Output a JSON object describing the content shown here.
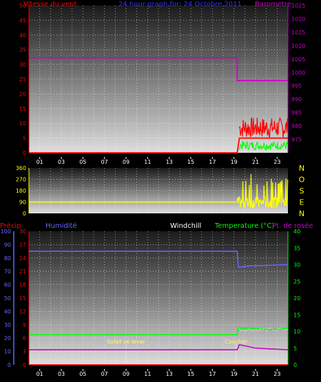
{
  "chart_data": [
    {
      "type": "line",
      "panel": "wind-baro",
      "title": "24 hour graph for: 24 Octobre 2011",
      "left_axis_label": "Vitesse du vent",
      "right_axis_label": "Barometre",
      "left_ylim": [
        0,
        50
      ],
      "right_ylim": [
        970,
        1025
      ],
      "left_ticks": [
        "0",
        "5",
        "10",
        "15",
        "20",
        "25",
        "30",
        "35",
        "40",
        "45",
        "50"
      ],
      "right_ticks": [
        "975",
        "980",
        "985",
        "990",
        "995",
        "1000",
        "1005",
        "1010",
        "1015",
        "1020",
        "1025"
      ],
      "x_ticks": [
        "01",
        "03",
        "05",
        "07",
        "09",
        "11",
        "13",
        "15",
        "17",
        "19",
        "21",
        "23"
      ],
      "grid": true,
      "series": [
        {
          "name": "Barometre",
          "axis": "right",
          "color": "#cc00cc",
          "x": [
            0,
            19.3,
            19.3,
            24
          ],
          "y": [
            1005.5,
            1005.5,
            997,
            997
          ]
        },
        {
          "name": "Vitesse du vent",
          "axis": "left",
          "color": "#ff0000",
          "x": [
            0,
            19.3,
            19.5,
            24
          ],
          "y": [
            0,
            0,
            5,
            5
          ]
        }
      ],
      "gust_band": {
        "color": "#ff0000",
        "x0": 19.5,
        "x1": 24,
        "ymin": 5,
        "ymax": 12
      },
      "avg_band": {
        "color": "#00ff00",
        "x0": 19.5,
        "x1": 24,
        "ymin": 1,
        "ymax": 4
      }
    },
    {
      "type": "line",
      "panel": "wind-direction",
      "ylim": [
        0,
        360
      ],
      "left_ticks": [
        "0",
        "90",
        "180",
        "270",
        "360"
      ],
      "compass_labels": [
        "N",
        "O",
        "S",
        "E",
        "N"
      ],
      "series": [
        {
          "name": "Direction",
          "color": "#ffff00",
          "x": [
            0,
            19.3
          ],
          "y": [
            90,
            90
          ]
        }
      ],
      "noise_band": {
        "color": "#ffff00",
        "x0": 19.3,
        "x1": 24,
        "ymin": 0,
        "ymax": 350
      }
    },
    {
      "type": "line",
      "panel": "temp-humid",
      "labels": {
        "precip": "Précip.",
        "humidite": "Humidité",
        "windchill": "Windchill",
        "temperature": "Temperature (°C)",
        "dewpoint": "Pt. de rosée"
      },
      "humid_ticks": [
        "0",
        "10",
        "20",
        "30",
        "40",
        "50",
        "60",
        "70",
        "80",
        "90",
        "100"
      ],
      "precip_ticks": [
        "0",
        "3",
        "6",
        "9",
        "12",
        "15",
        "18",
        "21",
        "24",
        "27",
        "30"
      ],
      "temp_ticks": [
        "0",
        "5",
        "10",
        "15",
        "20",
        "25",
        "30",
        "35",
        "40"
      ],
      "x_ticks": [
        "01",
        "03",
        "05",
        "07",
        "09",
        "11",
        "13",
        "15",
        "17",
        "19",
        "21",
        "23"
      ],
      "annotations": [
        {
          "text": "Soleil se lever",
          "x": 9
        },
        {
          "text": "Coucher",
          "x": 19.2
        }
      ],
      "series": [
        {
          "name": "Humidité",
          "axis": "humid",
          "color": "#6666ff",
          "x": [
            0,
            19.3,
            19.4,
            20.3,
            24
          ],
          "y": [
            85,
            85,
            73,
            74,
            75
          ]
        },
        {
          "name": "Temperature (°C)",
          "axis": "temp",
          "color": "#00ff00",
          "x": [
            0,
            19.3,
            19.4,
            20.5,
            22.5,
            24
          ],
          "y": [
            9,
            9,
            11,
            11,
            10.5,
            11
          ]
        },
        {
          "name": "Pt. de rosée",
          "axis": "temp",
          "color": "#cc00cc",
          "x": [
            0,
            19.3,
            19.5,
            21,
            24
          ],
          "y": [
            4.5,
            4.5,
            6,
            5,
            4.5
          ]
        },
        {
          "name": "Précip.",
          "axis": "precip",
          "color": "#ff0000",
          "x": [
            0,
            24
          ],
          "y": [
            0,
            0
          ]
        }
      ]
    }
  ]
}
